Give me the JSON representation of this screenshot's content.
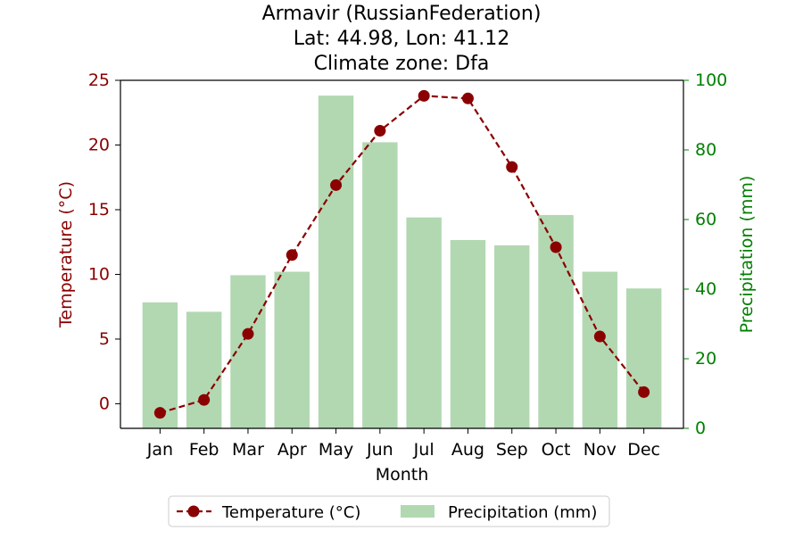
{
  "chart_data": {
    "type": "bar+line",
    "title_lines": [
      "Armavir (RussianFederation)",
      "Lat: 44.98, Lon: 41.12",
      "Climate zone: Dfa"
    ],
    "xlabel": "Month",
    "ylabel_left": "Temperature (°C)",
    "ylabel_right": "Precipitation (mm)",
    "categories": [
      "Jan",
      "Feb",
      "Mar",
      "Apr",
      "May",
      "Jun",
      "Jul",
      "Aug",
      "Sep",
      "Oct",
      "Nov",
      "Dec"
    ],
    "left_axis": {
      "ylim": [
        -1.9,
        25
      ],
      "ticks": [
        0,
        5,
        10,
        15,
        20,
        25
      ],
      "tick_labels": [
        "0",
        "5",
        "10",
        "15",
        "20",
        "25"
      ],
      "color": "#8b0000"
    },
    "right_axis": {
      "ylim": [
        0,
        100
      ],
      "ticks": [
        0,
        20,
        40,
        60,
        80,
        100
      ],
      "tick_labels": [
        "0",
        "20",
        "40",
        "60",
        "80",
        "100"
      ],
      "color": "#008000"
    },
    "series": [
      {
        "name": "Temperature (°C)",
        "kind": "line",
        "axis": "left",
        "style": "dashed",
        "marker": "circle",
        "color": "#8b0000",
        "values": [
          -0.7,
          0.3,
          5.4,
          11.5,
          16.9,
          21.1,
          23.8,
          23.6,
          18.3,
          12.1,
          5.2,
          0.9
        ]
      },
      {
        "name": "Precipitation (mm)",
        "kind": "bar",
        "axis": "right",
        "color": "#b2d8b2",
        "values": [
          36.2,
          33.5,
          44.0,
          45.0,
          95.6,
          82.2,
          60.6,
          54.1,
          52.6,
          61.3,
          45.0,
          40.2
        ]
      }
    ],
    "legend": {
      "placement": "bottom-center",
      "entries": [
        "Temperature (°C)",
        "Precipitation (mm)"
      ]
    },
    "grid": false
  }
}
